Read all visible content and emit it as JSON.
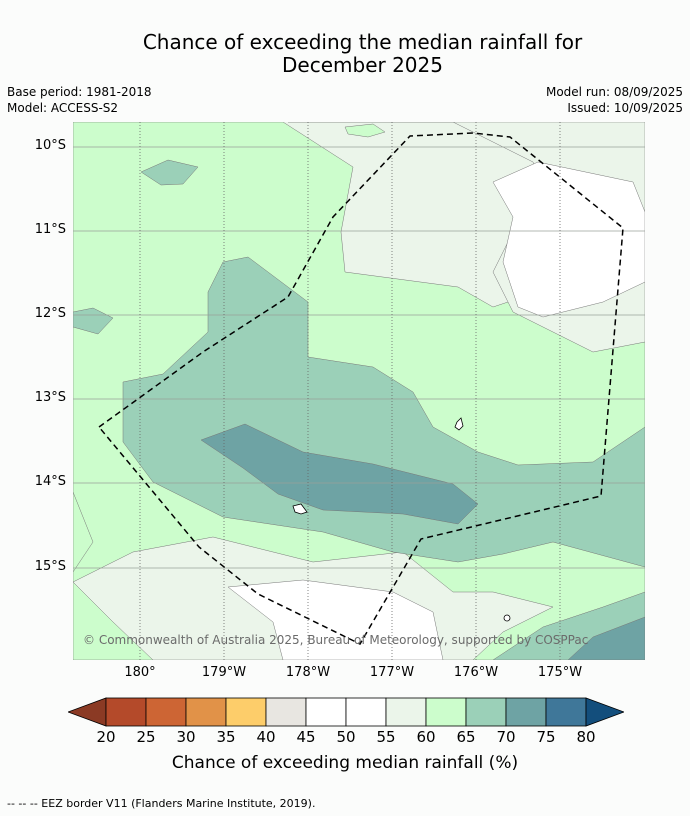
{
  "title_line1": "Chance of exceeding the median rainfall for",
  "title_line2": "December 2025",
  "base_period": "Base period: 1981-2018",
  "model": "Model: ACCESS-S2",
  "model_run": "Model run: 08/09/2025",
  "issued": "Issued: 10/09/2025",
  "copyright": "© Commonwealth of Australia 2025, Bureau of Meteorology, supported by COSPPac",
  "lat_labels": [
    "10°S",
    "11°S",
    "12°S",
    "13°S",
    "14°S",
    "15°S"
  ],
  "lon_labels": [
    "180°",
    "179°W",
    "178°W",
    "177°W",
    "176°W",
    "175°W"
  ],
  "colorbar": {
    "ticks": [
      "20",
      "25",
      "30",
      "35",
      "40",
      "45",
      "50",
      "55",
      "60",
      "65",
      "70",
      "75",
      "80"
    ],
    "colors": [
      "#8b3a24",
      "#b44a2a",
      "#cd6534",
      "#e19248",
      "#fdcd6a",
      "#e8e6e1",
      "#ffffff",
      "#ffffff",
      "#ebf5ea",
      "#ccfdcc",
      "#9bd0b8",
      "#6ea3a4",
      "#3f7799",
      "#134e7c"
    ],
    "label": "Chance of exceeding median rainfall (%)"
  },
  "footer": "--  --  -- EEZ border V11 (Flanders Marine Institute, 2019)."
}
